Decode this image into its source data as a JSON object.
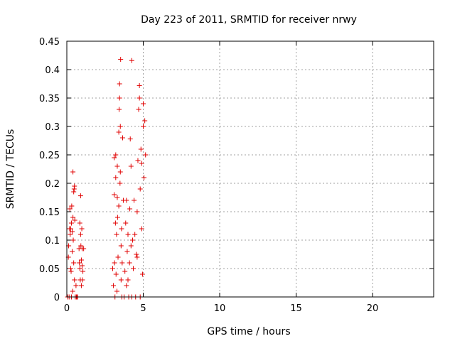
{
  "chart_data": {
    "type": "scatter",
    "title": "Day 223 of 2011, SRMTID for receiver nrwy",
    "xlabel": "GPS time / hours",
    "ylabel": "SRMTID / TECUs",
    "xlim": [
      0,
      24
    ],
    "ylim": [
      0,
      0.45
    ],
    "xticks": [
      "0",
      "5",
      "10",
      "15",
      "20"
    ],
    "yticks": [
      "0",
      "0.05",
      "0.1",
      "0.15",
      "0.2",
      "0.25",
      "0.3",
      "0.35",
      "0.4",
      "0.45"
    ],
    "grid": true,
    "marker": "+",
    "color": "#e00000",
    "series": [
      {
        "points": [
          [
            0.05,
            0.0
          ],
          [
            0.1,
            0.07
          ],
          [
            0.12,
            0.09
          ],
          [
            0.15,
            0.0
          ],
          [
            0.18,
            0.12
          ],
          [
            0.2,
            0.155
          ],
          [
            0.22,
            0.11
          ],
          [
            0.25,
            0.12
          ],
          [
            0.25,
            0.05
          ],
          [
            0.28,
            0.045
          ],
          [
            0.3,
            0.0
          ],
          [
            0.3,
            0.13
          ],
          [
            0.32,
            0.16
          ],
          [
            0.35,
            0.08
          ],
          [
            0.35,
            0.115
          ],
          [
            0.38,
            0.01
          ],
          [
            0.4,
            0.22
          ],
          [
            0.4,
            0.14
          ],
          [
            0.42,
            0.1
          ],
          [
            0.45,
            0.185
          ],
          [
            0.45,
            0.06
          ],
          [
            0.48,
            0.19
          ],
          [
            0.5,
            0.195
          ],
          [
            0.5,
            0.03
          ],
          [
            0.52,
            0.135
          ],
          [
            0.55,
            0.0
          ],
          [
            0.6,
            0.02
          ],
          [
            0.62,
            0.0
          ],
          [
            0.65,
            0.0
          ],
          [
            0.7,
            0.0
          ],
          [
            0.8,
            0.085
          ],
          [
            0.82,
            0.06
          ],
          [
            0.85,
            0.05
          ],
          [
            0.85,
            0.13
          ],
          [
            0.88,
            0.03
          ],
          [
            0.9,
            0.178
          ],
          [
            0.9,
            0.11
          ],
          [
            0.92,
            0.09
          ],
          [
            0.95,
            0.065
          ],
          [
            0.95,
            0.02
          ],
          [
            0.98,
            0.12
          ],
          [
            1.0,
            0.055
          ],
          [
            1.0,
            0.085
          ],
          [
            1.02,
            0.03
          ],
          [
            1.05,
            0.045
          ],
          [
            1.1,
            0.085
          ],
          [
            3.0,
            0.05
          ],
          [
            3.05,
            0.02
          ],
          [
            3.1,
            0.18
          ],
          [
            3.1,
            0.245
          ],
          [
            3.12,
            0.06
          ],
          [
            3.15,
            0.0
          ],
          [
            3.18,
            0.13
          ],
          [
            3.2,
            0.25
          ],
          [
            3.2,
            0.21
          ],
          [
            3.22,
            0.04
          ],
          [
            3.25,
            0.11
          ],
          [
            3.28,
            0.01
          ],
          [
            3.3,
            0.175
          ],
          [
            3.3,
            0.23
          ],
          [
            3.32,
            0.14
          ],
          [
            3.35,
            0.07
          ],
          [
            3.4,
            0.16
          ],
          [
            3.4,
            0.29
          ],
          [
            3.42,
            0.33
          ],
          [
            3.45,
            0.35
          ],
          [
            3.45,
            0.375
          ],
          [
            3.48,
            0.2
          ],
          [
            3.5,
            0.3
          ],
          [
            3.5,
            0.22
          ],
          [
            3.52,
            0.418
          ],
          [
            3.55,
            0.09
          ],
          [
            3.55,
            0.03
          ],
          [
            3.58,
            0.12
          ],
          [
            3.6,
            0.0
          ],
          [
            3.62,
            0.06
          ],
          [
            3.65,
            0.28
          ],
          [
            3.7,
            0.17
          ],
          [
            3.75,
            0.0
          ],
          [
            3.8,
            0.045
          ],
          [
            3.85,
            0.13
          ],
          [
            3.9,
            0.02
          ],
          [
            3.9,
            0.17
          ],
          [
            3.95,
            0.08
          ],
          [
            4.0,
            0.11
          ],
          [
            4.0,
            0.03
          ],
          [
            4.05,
            0.0
          ],
          [
            4.1,
            0.06
          ],
          [
            4.12,
            0.155
          ],
          [
            4.15,
            0.278
          ],
          [
            4.2,
            0.09
          ],
          [
            4.2,
            0.23
          ],
          [
            4.25,
            0.416
          ],
          [
            4.25,
            0.0
          ],
          [
            4.3,
            0.1
          ],
          [
            4.35,
            0.05
          ],
          [
            4.4,
            0.17
          ],
          [
            4.45,
            0.11
          ],
          [
            4.5,
            0.0
          ],
          [
            4.55,
            0.075
          ],
          [
            4.6,
            0.15
          ],
          [
            4.6,
            0.07
          ],
          [
            4.65,
            0.24
          ],
          [
            4.7,
            0.33
          ],
          [
            4.75,
            0.372
          ],
          [
            4.75,
            0.35
          ],
          [
            4.8,
            0.0
          ],
          [
            4.8,
            0.19
          ],
          [
            4.85,
            0.26
          ],
          [
            4.9,
            0.12
          ],
          [
            4.9,
            0.235
          ],
          [
            4.95,
            0.04
          ],
          [
            5.0,
            0.3
          ],
          [
            5.0,
            0.34
          ],
          [
            5.05,
            0.21
          ],
          [
            5.1,
            0.31
          ],
          [
            5.15,
            0.25
          ]
        ]
      }
    ]
  }
}
